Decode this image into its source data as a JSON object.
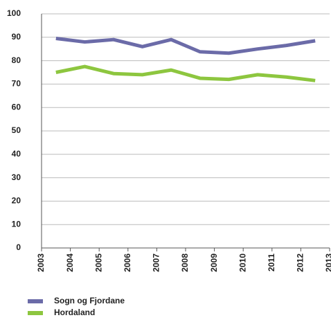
{
  "chart_data": {
    "type": "line",
    "x": [
      2003.5,
      2004.5,
      2005.5,
      2006.5,
      2007.5,
      2008.5,
      2009.5,
      2010.5,
      2011.5,
      2012.5
    ],
    "series": [
      {
        "name": "Sogn og Fjordane",
        "color": "#6b6ba8",
        "values": [
          89.5,
          88,
          89,
          86,
          89,
          83.8,
          83.2,
          85,
          86.5,
          88.5
        ]
      },
      {
        "name": "Hordaland",
        "color": "#8dc63f",
        "values": [
          75,
          77.5,
          74.5,
          74,
          76,
          72.5,
          72,
          74,
          73,
          71.5
        ]
      }
    ],
    "xlim": [
      2003,
      2013
    ],
    "xticks": [
      2003,
      2004,
      2005,
      2006,
      2007,
      2008,
      2009,
      2010,
      2011,
      2012,
      2013
    ],
    "ylim": [
      0,
      100
    ],
    "yticks": [
      0,
      10,
      20,
      30,
      40,
      50,
      60,
      70,
      80,
      90,
      100
    ],
    "grid": true
  }
}
